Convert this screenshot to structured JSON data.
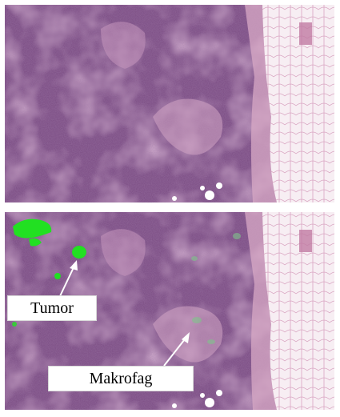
{
  "figure": {
    "panels": [
      {
        "id": "top",
        "description": ""
      },
      {
        "id": "bottom",
        "overlay": "green-segmentation"
      }
    ],
    "labels": {
      "tumor": "Tumor",
      "makrofag": "Makrofag"
    },
    "colors": {
      "tissue": "#7d4f84",
      "tissue_dark": "#5e3a6b",
      "tissue_light": "#b98fb3",
      "fat": "#f6eef2",
      "highlight": "#22e022",
      "arrow": "#ffffff"
    }
  }
}
